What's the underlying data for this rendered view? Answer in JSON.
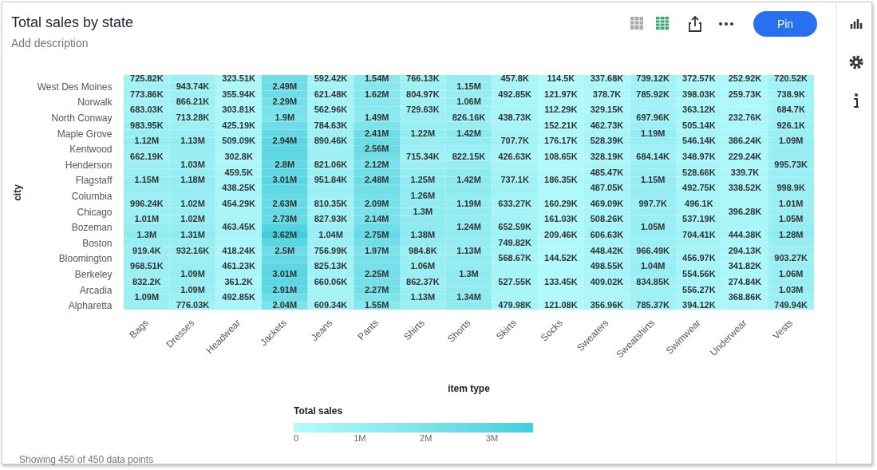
{
  "chart_data": {
    "type": "heatmap",
    "title": "Total sales by state",
    "subtitle": "Add description",
    "xlabel": "item type",
    "ylabel": "city",
    "legend_title": "Total sales",
    "annotations": [
      "Showing 450 of 450 data points",
      "Pin"
    ],
    "categories": [
      "Bags",
      "Dresses",
      "Headwear",
      "Jackets",
      "Jeans",
      "Pants",
      "Shirts",
      "Shorts",
      "Skirts",
      "Socks",
      "Sweaters",
      "Sweatshirts",
      "Swimwear",
      "Underwear",
      "Vests"
    ],
    "y_categories": [
      null,
      "West Des Moines",
      null,
      "Norwalk",
      null,
      "North Conway",
      null,
      "Maple Grove",
      null,
      "Kentwood",
      null,
      "Henderson",
      null,
      "Flagstaff",
      null,
      "Columbia",
      null,
      "Chicago",
      null,
      "Bozeman",
      null,
      "Boston",
      null,
      "Bloomington",
      null,
      "Berkeley",
      null,
      "Arcadia",
      null,
      "Alpharetta"
    ],
    "clim": [
      0,
      3620000
    ],
    "cticks": [
      0,
      {
        "value": 1000000,
        "label": "1M"
      },
      {
        "value": 2000000,
        "label": "2M"
      },
      {
        "value": 3000000,
        "label": "3M"
      }
    ],
    "cells": [
      [
        725820,
        900000,
        323510,
        2400000,
        592420,
        1540000,
        766130,
        1150000,
        457800,
        114500,
        337680,
        739120,
        372570,
        252920,
        720520
      ],
      [
        750000,
        943740,
        340000,
        2490000,
        600000,
        1580000,
        790000,
        1150000,
        470000,
        118000,
        360000,
        760000,
        385000,
        255000,
        730000
      ],
      [
        773860,
        900000,
        355940,
        2400000,
        621480,
        1620000,
        804970,
        1100000,
        492850,
        121970,
        378700,
        785920,
        398030,
        259730,
        738900
      ],
      [
        730000,
        866210,
        330000,
        2290000,
        590000,
        1560000,
        770000,
        1060000,
        470000,
        117000,
        350000,
        740000,
        380000,
        245000,
        710000
      ],
      [
        683030,
        790000,
        303810,
        2100000,
        562960,
        1520000,
        729630,
        950000,
        450000,
        112290,
        329150,
        720000,
        363120,
        240000,
        684700
      ],
      [
        830000,
        713280,
        360000,
        1900000,
        670000,
        1490000,
        900000,
        826160,
        438730,
        130000,
        400000,
        697960,
        430000,
        232760,
        800000
      ],
      [
        983950,
        900000,
        425190,
        2400000,
        784630,
        1950000,
        1050000,
        1100000,
        530000,
        152210,
        462730,
        950000,
        505140,
        300000,
        926100
      ],
      [
        1050000,
        1000000,
        470000,
        2700000,
        840000,
        2410000,
        1220000,
        1420000,
        620000,
        165000,
        500000,
        1190000,
        525000,
        340000,
        1000000
      ],
      [
        1120000,
        1130000,
        509090,
        2940000,
        890460,
        2480000,
        1100000,
        1200000,
        707700,
        176170,
        528390,
        1000000,
        546140,
        386240,
        1090000
      ],
      [
        890000,
        1100000,
        400000,
        2900000,
        860000,
        2560000,
        900000,
        1000000,
        570000,
        140000,
        430000,
        850000,
        450000,
        310000,
        1050000
      ],
      [
        662190,
        1050000,
        302800,
        2850000,
        840000,
        2340000,
        715340,
        822150,
        426630,
        108650,
        328190,
        684140,
        348970,
        229240,
        1020000
      ],
      [
        900000,
        1030000,
        380000,
        2800000,
        821060,
        2120000,
        900000,
        1100000,
        530000,
        140000,
        410000,
        900000,
        440000,
        280000,
        995730
      ],
      [
        1000000,
        1100000,
        459500,
        2900000,
        890000,
        2300000,
        1100000,
        1300000,
        630000,
        165000,
        485470,
        1050000,
        528660,
        339700,
        997000
      ],
      [
        1150000,
        1180000,
        450000,
        3010000,
        951840,
        2480000,
        1250000,
        1420000,
        737100,
        186350,
        490000,
        1150000,
        510000,
        340000,
        998000
      ],
      [
        1050000,
        1100000,
        438250,
        2800000,
        880000,
        2300000,
        1250000,
        1300000,
        700000,
        175000,
        487050,
        1080000,
        492750,
        338520,
        998900
      ],
      [
        1000000,
        1050000,
        450000,
        2700000,
        840000,
        2200000,
        1260000,
        1250000,
        660000,
        165000,
        480000,
        1040000,
        495000,
        360000,
        1000000
      ],
      [
        996240,
        1020000,
        454290,
        2630000,
        810350,
        2090000,
        1280000,
        1190000,
        633270,
        160290,
        469090,
        997700,
        496100,
        380000,
        1010000
      ],
      [
        1000000,
        1020000,
        460000,
        2700000,
        820000,
        2110000,
        1300000,
        1210000,
        640000,
        160000,
        490000,
        1020000,
        515000,
        396280,
        1030000
      ],
      [
        1010000,
        1020000,
        460000,
        2730000,
        827930,
        2140000,
        1340000,
        1230000,
        650000,
        161030,
        508260,
        1040000,
        537190,
        420000,
        1050000
      ],
      [
        1150000,
        1150000,
        463450,
        3200000,
        930000,
        2450000,
        1360000,
        1240000,
        652590,
        185000,
        560000,
        1050000,
        620000,
        430000,
        1160000
      ],
      [
        1300000,
        1310000,
        450000,
        3620000,
        1040000,
        2750000,
        1380000,
        1200000,
        700000,
        209460,
        606630,
        1010000,
        704410,
        444380,
        1280000
      ],
      [
        1100000,
        1100000,
        430000,
        3000000,
        900000,
        2350000,
        1180000,
        1170000,
        749820,
        175000,
        530000,
        990000,
        620000,
        370000,
        1100000
      ],
      [
        919400,
        932160,
        418240,
        2500000,
        756990,
        1970000,
        984800,
        1130000,
        660000,
        160000,
        448420,
        966490,
        540000,
        294130,
        1000000
      ],
      [
        940000,
        1000000,
        440000,
        2700000,
        790000,
        2100000,
        1020000,
        1200000,
        568670,
        144520,
        470000,
        1000000,
        456970,
        320000,
        903270
      ],
      [
        968510,
        1050000,
        461230,
        2900000,
        825130,
        2200000,
        1060000,
        1250000,
        550000,
        140000,
        498550,
        1040000,
        500000,
        341820,
        980000
      ],
      [
        900000,
        1090000,
        410000,
        3010000,
        740000,
        2250000,
        960000,
        1300000,
        540000,
        135000,
        450000,
        940000,
        554560,
        310000,
        1060000
      ],
      [
        832200,
        1090000,
        361200,
        2950000,
        660060,
        2260000,
        862370,
        1320000,
        527550,
        133450,
        409020,
        834850,
        555000,
        274840,
        1050000
      ],
      [
        960000,
        1090000,
        430000,
        2910000,
        640000,
        2270000,
        1000000,
        1330000,
        510000,
        128000,
        390000,
        820000,
        556270,
        320000,
        1030000
      ],
      [
        1090000,
        900000,
        492850,
        2500000,
        620000,
        1900000,
        1130000,
        1340000,
        490000,
        124000,
        370000,
        800000,
        480000,
        368860,
        890000
      ],
      [
        1000000,
        776030,
        450000,
        2040000,
        609340,
        1550000,
        1000000,
        1340000,
        479980,
        121080,
        356960,
        785370,
        394120,
        370000,
        749940
      ]
    ],
    "cell_labels": [
      [
        "725.82K",
        null,
        "323.51K",
        null,
        "592.42K",
        "1.54M",
        "766.13K",
        null,
        "457.8K",
        "114.5K",
        "337.68K",
        "739.12K",
        "372.57K",
        "252.92K",
        "720.52K"
      ],
      [
        null,
        "943.74K",
        null,
        "2.49M",
        null,
        null,
        null,
        "1.15M",
        null,
        null,
        null,
        null,
        null,
        null,
        null
      ],
      [
        "773.86K",
        null,
        "355.94K",
        null,
        "621.48K",
        "1.62M",
        "804.97K",
        null,
        "492.85K",
        "121.97K",
        "378.7K",
        "785.92K",
        "398.03K",
        "259.73K",
        "738.9K"
      ],
      [
        null,
        "866.21K",
        null,
        "2.29M",
        null,
        null,
        null,
        "1.06M",
        null,
        null,
        null,
        null,
        null,
        null,
        null
      ],
      [
        "683.03K",
        null,
        "303.81K",
        null,
        "562.96K",
        null,
        "729.63K",
        null,
        null,
        "112.29K",
        "329.15K",
        null,
        "363.12K",
        null,
        "684.7K"
      ],
      [
        null,
        "713.28K",
        null,
        "1.9M",
        null,
        "1.49M",
        null,
        "826.16K",
        "438.73K",
        null,
        null,
        "697.96K",
        null,
        "232.76K",
        null
      ],
      [
        "983.95K",
        null,
        "425.19K",
        null,
        "784.63K",
        null,
        null,
        null,
        null,
        "152.21K",
        "462.73K",
        null,
        "505.14K",
        null,
        "926.1K"
      ],
      [
        null,
        null,
        null,
        null,
        null,
        "2.41M",
        "1.22M",
        "1.42M",
        null,
        null,
        null,
        "1.19M",
        null,
        null,
        null
      ],
      [
        "1.12M",
        "1.13M",
        "509.09K",
        "2.94M",
        "890.46K",
        null,
        null,
        null,
        "707.7K",
        "176.17K",
        "528.39K",
        null,
        "546.14K",
        "386.24K",
        "1.09M"
      ],
      [
        null,
        null,
        null,
        null,
        null,
        "2.56M",
        null,
        null,
        null,
        null,
        null,
        null,
        null,
        null,
        null
      ],
      [
        "662.19K",
        null,
        "302.8K",
        null,
        null,
        null,
        "715.34K",
        "822.15K",
        "426.63K",
        "108.65K",
        "328.19K",
        "684.14K",
        "348.97K",
        "229.24K",
        null
      ],
      [
        null,
        "1.03M",
        null,
        "2.8M",
        "821.06K",
        "2.12M",
        null,
        null,
        null,
        null,
        null,
        null,
        null,
        null,
        "995.73K"
      ],
      [
        null,
        null,
        "459.5K",
        null,
        null,
        null,
        null,
        null,
        null,
        null,
        "485.47K",
        null,
        "528.66K",
        "339.7K",
        null
      ],
      [
        "1.15M",
        "1.18M",
        null,
        "3.01M",
        "951.84K",
        "2.48M",
        "1.25M",
        "1.42M",
        "737.1K",
        "186.35K",
        null,
        "1.15M",
        null,
        null,
        null
      ],
      [
        null,
        null,
        "438.25K",
        null,
        null,
        null,
        null,
        null,
        null,
        null,
        "487.05K",
        null,
        "492.75K",
        "338.52K",
        "998.9K"
      ],
      [
        null,
        null,
        null,
        null,
        null,
        null,
        "1.26M",
        null,
        null,
        null,
        null,
        null,
        null,
        null,
        null
      ],
      [
        "996.24K",
        "1.02M",
        "454.29K",
        "2.63M",
        "810.35K",
        "2.09M",
        null,
        "1.19M",
        "633.27K",
        "160.29K",
        "469.09K",
        "997.7K",
        "496.1K",
        null,
        "1.01M"
      ],
      [
        null,
        null,
        null,
        null,
        null,
        null,
        "1.3M",
        null,
        null,
        null,
        null,
        null,
        null,
        "396.28K",
        null
      ],
      [
        "1.01M",
        "1.02M",
        null,
        "2.73M",
        "827.93K",
        "2.14M",
        null,
        null,
        null,
        "161.03K",
        "508.26K",
        null,
        "537.19K",
        null,
        "1.05M"
      ],
      [
        null,
        null,
        "463.45K",
        null,
        null,
        null,
        null,
        "1.24M",
        "652.59K",
        null,
        null,
        "1.05M",
        null,
        null,
        null
      ],
      [
        "1.3M",
        "1.31M",
        null,
        "3.62M",
        "1.04M",
        "2.75M",
        "1.38M",
        null,
        null,
        "209.46K",
        "606.63K",
        null,
        "704.41K",
        "444.38K",
        "1.28M"
      ],
      [
        null,
        null,
        null,
        null,
        null,
        null,
        null,
        null,
        "749.82K",
        null,
        null,
        null,
        null,
        null,
        null
      ],
      [
        "919.4K",
        "932.16K",
        "418.24K",
        "2.5M",
        "756.99K",
        "1.97M",
        "984.8K",
        "1.13M",
        null,
        null,
        "448.42K",
        "966.49K",
        null,
        "294.13K",
        null
      ],
      [
        null,
        null,
        null,
        null,
        null,
        null,
        null,
        null,
        "568.67K",
        "144.52K",
        null,
        null,
        "456.97K",
        null,
        "903.27K"
      ],
      [
        "968.51K",
        null,
        "461.23K",
        null,
        "825.13K",
        null,
        "1.06M",
        null,
        null,
        null,
        "498.55K",
        "1.04M",
        null,
        "341.82K",
        null
      ],
      [
        null,
        "1.09M",
        null,
        "3.01M",
        null,
        "2.25M",
        null,
        "1.3M",
        null,
        null,
        null,
        null,
        "554.56K",
        null,
        "1.06M"
      ],
      [
        "832.2K",
        null,
        "361.2K",
        null,
        "660.06K",
        null,
        "862.37K",
        null,
        "527.55K",
        "133.45K",
        "409.02K",
        "834.85K",
        null,
        "274.84K",
        null
      ],
      [
        null,
        "1.09M",
        null,
        "2.91M",
        null,
        "2.27M",
        null,
        null,
        null,
        null,
        null,
        null,
        "556.27K",
        null,
        "1.03M"
      ],
      [
        "1.09M",
        null,
        "492.85K",
        null,
        null,
        null,
        "1.13M",
        "1.34M",
        null,
        null,
        null,
        null,
        null,
        "368.86K",
        null
      ],
      [
        null,
        "776.03K",
        null,
        "2.04M",
        "609.34K",
        "1.55M",
        null,
        null,
        "479.98K",
        "121.08K",
        "356.96K",
        "785.37K",
        "394.12K",
        null,
        "749.94K"
      ]
    ]
  }
}
